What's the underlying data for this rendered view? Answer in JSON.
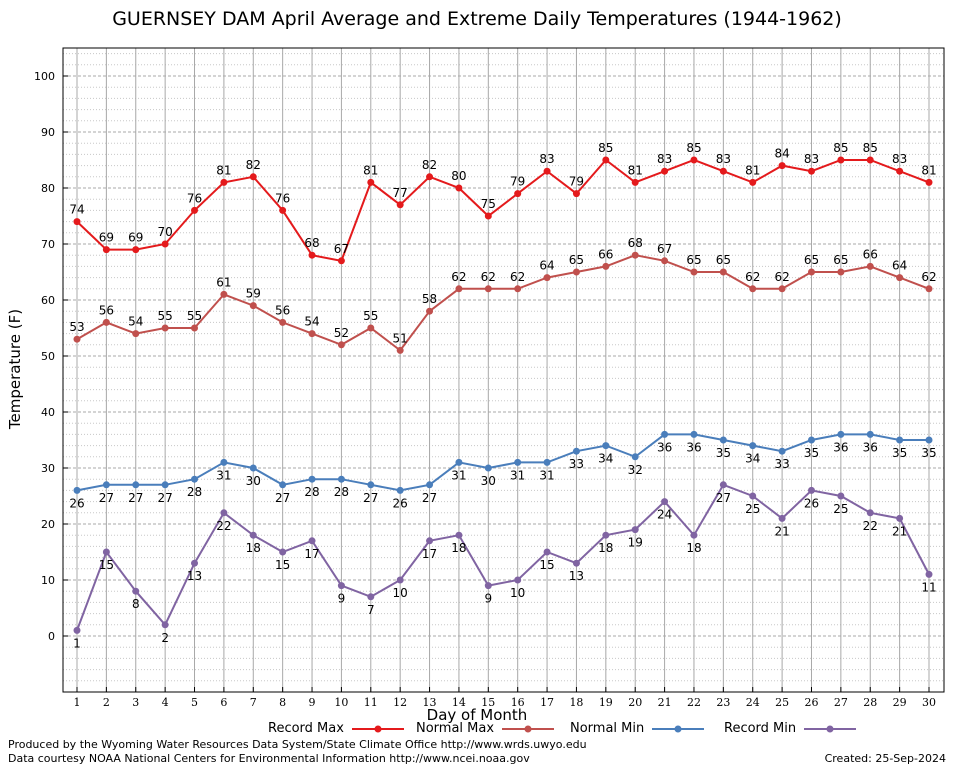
{
  "chart_data": {
    "type": "line",
    "title": "GUERNSEY DAM April Average and Extreme Daily Temperatures (1944-1962)",
    "xlabel": "Day of Month",
    "ylabel": "Temperature (F)",
    "ylim": [
      -10,
      105
    ],
    "yticks": [
      "0",
      "10",
      "20",
      "30",
      "40",
      "50",
      "60",
      "70",
      "80",
      "90",
      "100"
    ],
    "x": [
      1,
      2,
      3,
      4,
      5,
      6,
      7,
      8,
      9,
      10,
      11,
      12,
      13,
      14,
      15,
      16,
      17,
      18,
      19,
      20,
      21,
      22,
      23,
      24,
      25,
      26,
      27,
      28,
      29,
      30
    ],
    "grid": true,
    "legend_position": "bottom",
    "series": [
      {
        "name": "Record Max",
        "color": "#e41a1c",
        "values": [
          74,
          69,
          69,
          70,
          76,
          81,
          82,
          76,
          68,
          67,
          81,
          77,
          82,
          80,
          75,
          79,
          83,
          79,
          85,
          81,
          83,
          85,
          83,
          81,
          84,
          83,
          85,
          85,
          83,
          81
        ]
      },
      {
        "name": "Normal Max",
        "color": "#c0504d",
        "values": [
          53,
          56,
          54,
          55,
          55,
          61,
          59,
          56,
          54,
          52,
          55,
          51,
          58,
          62,
          62,
          62,
          64,
          65,
          66,
          68,
          67,
          65,
          65,
          62,
          62,
          65,
          65,
          66,
          64,
          62
        ]
      },
      {
        "name": "Normal Min",
        "color": "#4a7ebb",
        "values": [
          26,
          27,
          27,
          27,
          28,
          31,
          30,
          27,
          28,
          28,
          27,
          26,
          27,
          31,
          30,
          31,
          31,
          33,
          34,
          32,
          36,
          36,
          35,
          34,
          33,
          35,
          36,
          36,
          35,
          35
        ]
      },
      {
        "name": "Record Min",
        "color": "#8064a2",
        "values": [
          1,
          15,
          8,
          2,
          13,
          22,
          18,
          15,
          17,
          9,
          7,
          10,
          17,
          18,
          9,
          10,
          15,
          13,
          18,
          19,
          24,
          18,
          27,
          25,
          21,
          26,
          25,
          22,
          21,
          11
        ]
      }
    ]
  },
  "footer": {
    "produced_by": "Produced by the Wyoming Water Resources Data System/State Climate Office http://www.wrds.uwyo.edu",
    "courtesy": "Data courtesy NOAA National Centers for Environmental Information http://www.ncei.noaa.gov",
    "created": "Created:  25-Sep-2024"
  }
}
